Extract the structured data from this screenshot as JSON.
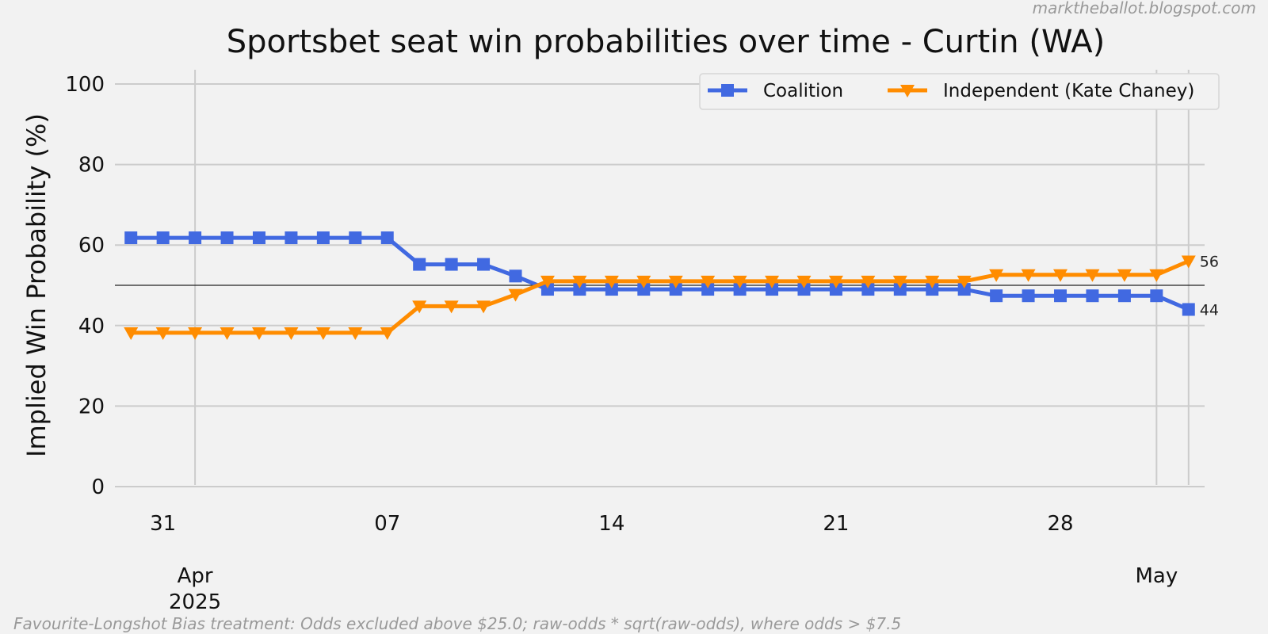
{
  "watermark": "marktheballot.blogspot.com",
  "footnote": "Favourite-Longshot Bias treatment: Odds excluded above $25.0; raw-odds * sqrt(raw-odds), where odds > $7.5",
  "chart_data": {
    "type": "line",
    "title": "Sportsbet seat win probabilities over time - Curtin (WA)",
    "xlabel": "",
    "ylabel": "Implied Win Probability (%)",
    "ylim": [
      0,
      100
    ],
    "yticks": [
      0,
      20,
      40,
      60,
      80,
      100
    ],
    "reference_line": 50,
    "x": [
      "2025-03-30",
      "2025-03-31",
      "2025-04-01",
      "2025-04-02",
      "2025-04-03",
      "2025-04-04",
      "2025-04-05",
      "2025-04-06",
      "2025-04-07",
      "2025-04-08",
      "2025-04-09",
      "2025-04-10",
      "2025-04-11",
      "2025-04-12",
      "2025-04-13",
      "2025-04-14",
      "2025-04-15",
      "2025-04-16",
      "2025-04-17",
      "2025-04-18",
      "2025-04-19",
      "2025-04-20",
      "2025-04-21",
      "2025-04-22",
      "2025-04-23",
      "2025-04-24",
      "2025-04-25",
      "2025-04-26",
      "2025-04-27",
      "2025-04-28",
      "2025-04-29",
      "2025-04-30",
      "2025-05-01",
      "2025-05-02"
    ],
    "xlim": [
      "2025-03-29T12:00",
      "2025-05-02T12:00"
    ],
    "xticks": [
      {
        "date": "2025-03-31",
        "label": "31"
      },
      {
        "date": "2025-04-07",
        "label": "07"
      },
      {
        "date": "2025-04-14",
        "label": "14"
      },
      {
        "date": "2025-04-21",
        "label": "21"
      },
      {
        "date": "2025-04-28",
        "label": "28"
      }
    ],
    "month_ticks": [
      {
        "date": "2025-04-01",
        "label": "Apr",
        "sublabel": "2025"
      },
      {
        "date": "2025-05-01",
        "label": "May",
        "sublabel": ""
      }
    ],
    "series": [
      {
        "name": "Coalition",
        "color": "#4169e1",
        "marker": "square",
        "values": [
          61.8,
          61.8,
          61.8,
          61.8,
          61.8,
          61.8,
          61.8,
          61.8,
          61.8,
          55.2,
          55.2,
          55.2,
          52.3,
          49.0,
          49.0,
          49.0,
          49.0,
          49.0,
          49.0,
          49.0,
          49.0,
          49.0,
          49.0,
          49.0,
          49.0,
          49.0,
          49.0,
          47.4,
          47.4,
          47.4,
          47.4,
          47.4,
          47.4,
          44.0
        ],
        "end_label": "44"
      },
      {
        "name": "Independent (Kate Chaney)",
        "color": "#ff8c00",
        "marker": "triangle-down",
        "values": [
          38.2,
          38.2,
          38.2,
          38.2,
          38.2,
          38.2,
          38.2,
          38.2,
          38.2,
          44.8,
          44.8,
          44.8,
          47.7,
          51.0,
          51.0,
          51.0,
          51.0,
          51.0,
          51.0,
          51.0,
          51.0,
          51.0,
          51.0,
          51.0,
          51.0,
          51.0,
          51.0,
          52.6,
          52.6,
          52.6,
          52.6,
          52.6,
          52.6,
          56.0
        ],
        "end_label": "56"
      }
    ],
    "legend_position": "top-right",
    "grid": true
  }
}
